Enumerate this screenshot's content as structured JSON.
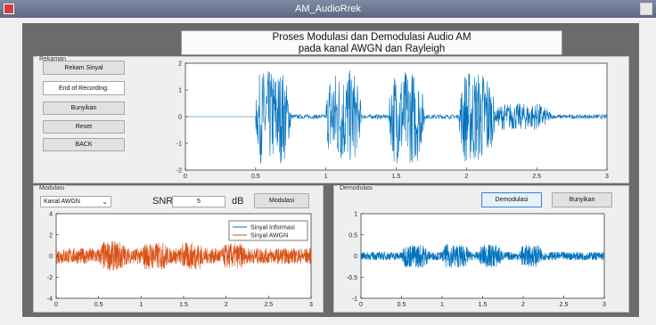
{
  "window": {
    "title": "AM_AudioRrek"
  },
  "header": {
    "line1": "Proses Modulasi dan Demodulasi Audio AM",
    "line2": "pada kanal AWGN dan Rayleigh"
  },
  "rekaman": {
    "panel_title": "Rekaman",
    "rekam_button": "Rekam Sinyal",
    "status_value": "End of Recording.",
    "bunyikan_button": "Bunyikan",
    "reset_button": "Reset",
    "back_button": "BACK"
  },
  "modulasi": {
    "panel_title": "Modulasi",
    "channel_selected": "Kanal AWGN",
    "snr_label": "SNR",
    "snr_value": "5",
    "db_label": "dB",
    "modulasi_button": "Modulasi",
    "legend": [
      "Sinyal Informasi",
      "Sinyal AWGN"
    ]
  },
  "demodulasi": {
    "panel_title": "Demodulasi",
    "demodulasi_button": "Demodulasi",
    "bunyikan_button": "Bunyikan"
  },
  "colors": {
    "blue": "#0072bd",
    "orange": "#d95319",
    "figure_bg": "#6b6b6b"
  },
  "chart_data": [
    {
      "type": "line",
      "name": "recorded",
      "xlim": [
        0,
        3
      ],
      "ylim": [
        -2,
        2
      ],
      "xticks": [
        "0",
        "0.5",
        "1",
        "1.5",
        "2",
        "2.5",
        "3"
      ],
      "yticks": [
        "2",
        "1",
        "0",
        "-1",
        "-2"
      ],
      "bursts": [
        {
          "x0": 0.5,
          "x1": 0.75,
          "amp": 1.75
        },
        {
          "x0": 1.0,
          "x1": 1.25,
          "amp": 1.75
        },
        {
          "x0": 1.45,
          "x1": 1.7,
          "amp": 1.75
        },
        {
          "x0": 1.95,
          "x1": 2.2,
          "amp": 1.75
        },
        {
          "x0": 2.2,
          "x1": 2.6,
          "amp": 0.5
        }
      ],
      "silence_end": 0.5,
      "noise_floor": 0.08,
      "color": "#0072bd"
    },
    {
      "type": "line",
      "name": "modulated",
      "xlim": [
        0,
        3
      ],
      "ylim": [
        -4,
        4
      ],
      "xticks": [
        "0",
        "0.5",
        "1",
        "1.5",
        "2",
        "2.5",
        "3"
      ],
      "yticks": [
        "4",
        "2",
        "0",
        "-2",
        "-4"
      ],
      "bursts": [
        {
          "x0": 0.5,
          "x1": 0.85,
          "amp": 1.4
        },
        {
          "x0": 1.0,
          "x1": 1.35,
          "amp": 1.3
        },
        {
          "x0": 1.45,
          "x1": 1.75,
          "amp": 1.3
        },
        {
          "x0": 1.95,
          "x1": 2.25,
          "amp": 1.2
        }
      ],
      "noise_floor": 0.75,
      "color": "#d95319",
      "series": [
        {
          "name": "Sinyal Informasi",
          "color": "#0072bd"
        },
        {
          "name": "Sinyal AWGN",
          "color": "#d95319"
        }
      ],
      "legend_position": "top-right"
    },
    {
      "type": "line",
      "name": "demodulated",
      "xlim": [
        0,
        3
      ],
      "ylim": [
        -1,
        1
      ],
      "xticks": [
        "0",
        "0.5",
        "1",
        "1.5",
        "2",
        "2.5",
        "3"
      ],
      "yticks": [
        "1",
        "0.5",
        "0",
        "-0.5",
        "-1"
      ],
      "bursts": [
        {
          "x0": 0.5,
          "x1": 0.85,
          "amp": 0.28
        },
        {
          "x0": 1.0,
          "x1": 1.35,
          "amp": 0.28
        },
        {
          "x0": 1.45,
          "x1": 1.75,
          "amp": 0.28
        },
        {
          "x0": 1.95,
          "x1": 2.25,
          "amp": 0.26
        }
      ],
      "noise_floor": 0.1,
      "color": "#0072bd"
    }
  ]
}
